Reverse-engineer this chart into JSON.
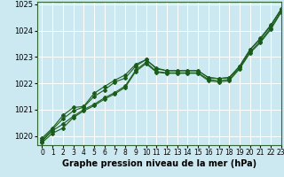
{
  "title": "Graphe pression niveau de la mer (hPa)",
  "xlim": [
    -0.5,
    23
  ],
  "ylim": [
    1019.65,
    1025.1
  ],
  "yticks": [
    1020,
    1021,
    1022,
    1023,
    1024,
    1025
  ],
  "xticks": [
    0,
    1,
    2,
    3,
    4,
    5,
    6,
    7,
    8,
    9,
    10,
    11,
    12,
    13,
    14,
    15,
    16,
    17,
    18,
    19,
    20,
    21,
    22,
    23
  ],
  "bg_color": "#cce8f0",
  "grid_color": "#ffffff",
  "line_color": "#1a5c1a",
  "series": [
    [
      1019.8,
      1020.2,
      1020.45,
      1020.75,
      1021.0,
      1021.2,
      1021.45,
      1021.65,
      1021.9,
      1022.5,
      1022.8,
      1022.45,
      1022.4,
      1022.4,
      1022.4,
      1022.4,
      1022.15,
      1022.1,
      1022.15,
      1022.6,
      1023.2,
      1023.6,
      1024.1,
      1024.75
    ],
    [
      1019.85,
      1020.25,
      1020.65,
      1020.95,
      1021.1,
      1021.5,
      1021.75,
      1022.05,
      1022.2,
      1022.65,
      1022.9,
      1022.55,
      1022.48,
      1022.48,
      1022.48,
      1022.48,
      1022.22,
      1022.18,
      1022.22,
      1022.65,
      1023.28,
      1023.72,
      1024.22,
      1024.82
    ],
    [
      1019.92,
      1020.3,
      1020.78,
      1021.08,
      1021.12,
      1021.62,
      1021.88,
      1022.12,
      1022.32,
      1022.72,
      1022.9,
      1022.58,
      1022.48,
      1022.48,
      1022.48,
      1022.48,
      1022.22,
      1022.18,
      1022.22,
      1022.65,
      1023.28,
      1023.68,
      1024.18,
      1024.82
    ],
    [
      1019.75,
      1020.1,
      1020.3,
      1020.7,
      1020.95,
      1021.15,
      1021.4,
      1021.6,
      1021.85,
      1022.45,
      1022.75,
      1022.42,
      1022.38,
      1022.38,
      1022.38,
      1022.38,
      1022.1,
      1022.05,
      1022.1,
      1022.55,
      1023.15,
      1023.55,
      1024.05,
      1024.7
    ]
  ],
  "font_size_title": 7,
  "tick_font_size": 5.5
}
